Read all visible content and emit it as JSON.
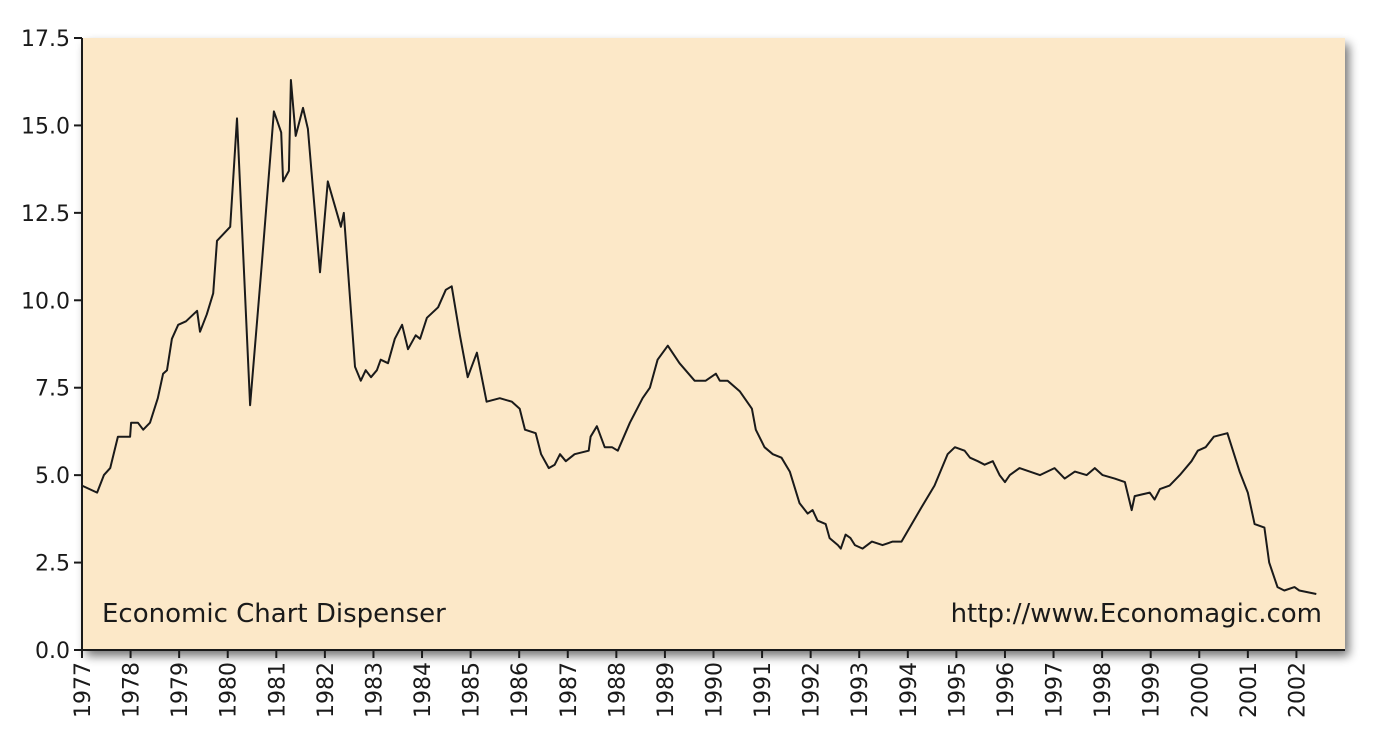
{
  "chart_data": {
    "type": "line",
    "annotations": [
      "Economic Chart Dispenser",
      "http://www.Economagic.com"
    ],
    "xlim": [
      1977,
      2003
    ],
    "xticks": [
      1977,
      1978,
      1979,
      1980,
      1981,
      1982,
      1983,
      1984,
      1985,
      1986,
      1987,
      1988,
      1989,
      1990,
      1991,
      1992,
      1993,
      1994,
      1995,
      1996,
      1997,
      1998,
      1999,
      2000,
      2001,
      2002
    ],
    "ylim": [
      0,
      17.5
    ],
    "yticks": [
      {
        "value": 0,
        "label": "0.0"
      },
      {
        "value": 2.5,
        "label": "2.5"
      },
      {
        "value": 5,
        "label": "5.0"
      },
      {
        "value": 7.5,
        "label": "7.5"
      },
      {
        "value": 10,
        "label": "10.0"
      },
      {
        "value": 12.5,
        "label": "12.5"
      },
      {
        "value": 15,
        "label": "15.0"
      },
      {
        "value": 17.5,
        "label": "17.5"
      }
    ],
    "color": "#1a1a1a",
    "background": "#fce8c8",
    "x": [
      1977.0,
      1977.31,
      1977.45,
      1977.58,
      1977.74,
      1977.99,
      1978.01,
      1978.15,
      1978.26,
      1978.4,
      1978.56,
      1978.67,
      1978.75,
      1978.85,
      1978.98,
      1979.14,
      1979.37,
      1979.43,
      1979.57,
      1979.7,
      1979.78,
      1980.05,
      1980.19,
      1980.46,
      1980.7,
      1980.95,
      1981.1,
      1981.14,
      1981.26,
      1981.3,
      1981.4,
      1981.55,
      1981.65,
      1981.9,
      1982.06,
      1982.33,
      1982.39,
      1982.62,
      1982.74,
      1982.84,
      1982.95,
      1983.07,
      1983.15,
      1983.3,
      1983.44,
      1983.59,
      1983.71,
      1983.87,
      1983.96,
      1984.1,
      1984.33,
      1984.49,
      1984.61,
      1984.78,
      1984.94,
      1985.13,
      1985.33,
      1985.6,
      1985.85,
      1986.01,
      1986.12,
      1986.34,
      1986.45,
      1986.61,
      1986.73,
      1986.84,
      1986.96,
      1987.14,
      1987.43,
      1987.47,
      1987.6,
      1987.76,
      1987.91,
      1988.03,
      1988.28,
      1988.54,
      1988.69,
      1988.85,
      1989.06,
      1989.3,
      1989.61,
      1989.84,
      1990.05,
      1990.13,
      1990.29,
      1990.54,
      1990.79,
      1990.87,
      1991.05,
      1991.22,
      1991.4,
      1991.57,
      1991.77,
      1991.94,
      1992.04,
      1992.14,
      1992.31,
      1992.39,
      1992.56,
      1992.62,
      1992.72,
      1992.82,
      1992.91,
      1993.07,
      1993.26,
      1993.48,
      1993.69,
      1993.87,
      1994.08,
      1994.29,
      1994.55,
      1994.82,
      1994.97,
      1995.17,
      1995.28,
      1995.44,
      1995.58,
      1995.75,
      1995.89,
      1996.0,
      1996.1,
      1996.3,
      1996.51,
      1996.72,
      1997.02,
      1997.23,
      1997.44,
      1997.68,
      1997.85,
      1998.01,
      1998.26,
      1998.47,
      1998.61,
      1998.67,
      1998.98,
      1999.08,
      1999.19,
      1999.39,
      1999.6,
      1999.84,
      1999.97,
      2000.13,
      2000.3,
      2000.58,
      2000.83,
      2001.0,
      2001.14,
      2001.34,
      2001.44,
      2001.61,
      2001.75,
      2001.96,
      2002.06,
      2002.41
    ],
    "values": [
      4.7,
      4.5,
      5.0,
      5.2,
      6.1,
      6.1,
      6.5,
      6.5,
      6.3,
      6.5,
      7.2,
      7.9,
      8.0,
      8.9,
      9.3,
      9.4,
      9.7,
      9.1,
      9.6,
      10.2,
      11.7,
      12.1,
      15.2,
      7.0,
      11.0,
      15.4,
      14.8,
      13.4,
      13.7,
      16.3,
      14.7,
      15.5,
      14.9,
      10.8,
      13.4,
      12.1,
      12.5,
      8.1,
      7.7,
      8.0,
      7.8,
      8.0,
      8.3,
      8.2,
      8.9,
      9.3,
      8.6,
      9.0,
      8.9,
      9.5,
      9.8,
      10.3,
      10.4,
      9.0,
      7.8,
      8.5,
      7.1,
      7.2,
      7.1,
      6.9,
      6.3,
      6.2,
      5.6,
      5.2,
      5.3,
      5.6,
      5.4,
      5.6,
      5.7,
      6.1,
      6.4,
      5.8,
      5.8,
      5.7,
      6.5,
      7.2,
      7.5,
      8.3,
      8.7,
      8.2,
      7.7,
      7.7,
      7.9,
      7.7,
      7.7,
      7.4,
      6.9,
      6.3,
      5.8,
      5.6,
      5.5,
      5.1,
      4.2,
      3.9,
      4.0,
      3.7,
      3.6,
      3.2,
      3.0,
      2.9,
      3.3,
      3.2,
      3.0,
      2.9,
      3.1,
      3.0,
      3.1,
      3.1,
      3.6,
      4.1,
      4.7,
      5.6,
      5.8,
      5.7,
      5.5,
      5.4,
      5.3,
      5.4,
      5.0,
      4.8,
      5.0,
      5.2,
      5.1,
      5.0,
      5.2,
      4.9,
      5.1,
      5.0,
      5.2,
      5.0,
      4.9,
      4.8,
      4.0,
      4.4,
      4.5,
      4.3,
      4.6,
      4.7,
      5.0,
      5.4,
      5.7,
      5.8,
      6.1,
      6.2,
      5.1,
      4.5,
      3.6,
      3.5,
      2.5,
      1.8,
      1.7,
      1.8,
      1.7,
      1.6
    ]
  }
}
